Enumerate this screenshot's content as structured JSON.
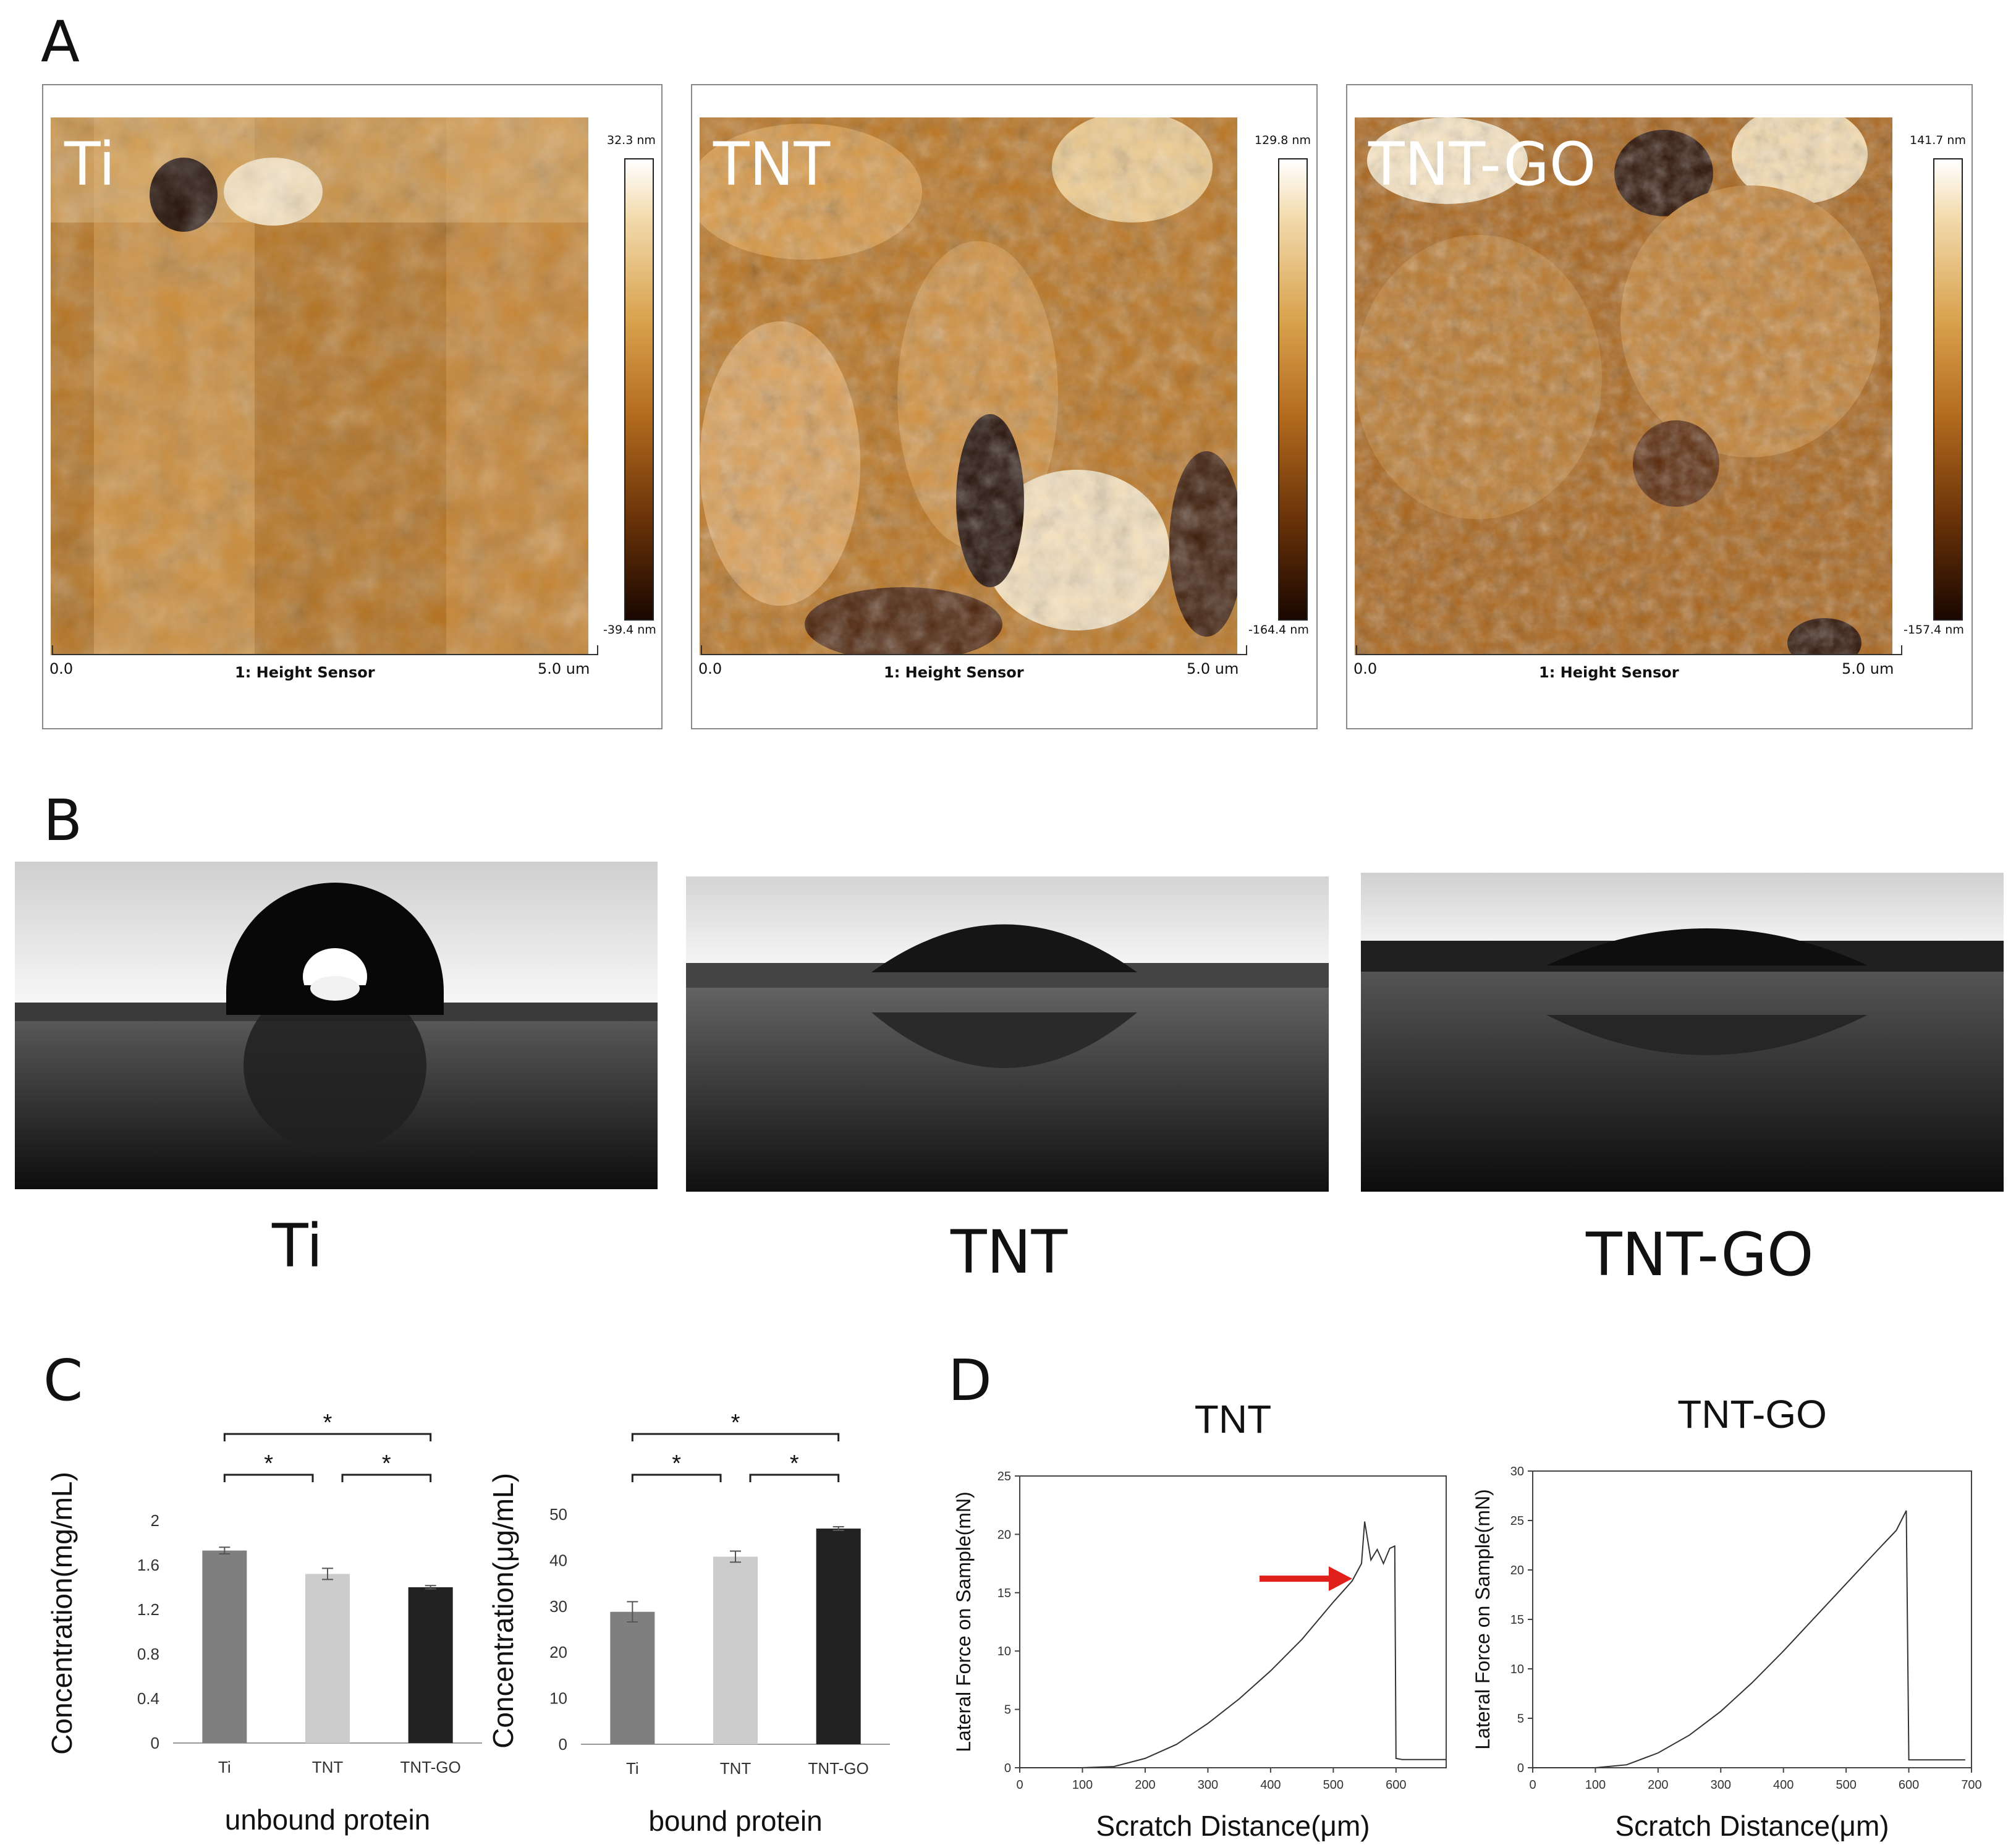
{
  "panels": {
    "A": "A",
    "B": "B",
    "C": "C",
    "D": "D"
  },
  "afm": [
    {
      "label": "Ti",
      "max": "32.3 nm",
      "min": "-39.4 nm",
      "scale_start": "0.0",
      "scale_end": "5.0 um",
      "sensor": "1: Height Sensor"
    },
    {
      "label": "TNT",
      "max": "129.8 nm",
      "min": "-164.4 nm",
      "scale_start": "0.0",
      "scale_end": "5.0 um",
      "sensor": "1: Height Sensor"
    },
    {
      "label": "TNT-GO",
      "max": "141.7 nm",
      "min": "-157.4 nm",
      "scale_start": "0.0",
      "scale_end": "5.0 um",
      "sensor": "1: Height Sensor"
    }
  ],
  "contact_angle_labels": [
    "Ti",
    "TNT",
    "TNT-GO"
  ],
  "colors": {
    "ti_bar": "#7f7f7f",
    "tnt_bar": "#cccccc",
    "tntgo_bar": "#222222",
    "arrow": "#e0201a",
    "afm_bright": "#fbe9c8",
    "afm_dark": "#1a0700"
  },
  "chart_data": [
    {
      "type": "bar",
      "xlabel": "unbound protein",
      "ylabel": "Concentration(mg/mL)",
      "categories": [
        "Ti",
        "TNT",
        "TNT-GO"
      ],
      "values": [
        1.73,
        1.52,
        1.4
      ],
      "errors": [
        0.03,
        0.05,
        0.015
      ],
      "ylim": [
        0,
        2
      ],
      "yticks": [
        "0",
        "0.4",
        "0.8",
        "1.2",
        "1.6",
        "2"
      ],
      "significance": [
        {
          "from": 0,
          "to": 2,
          "label": "*"
        },
        {
          "from": 0,
          "to": 1,
          "label": "*"
        },
        {
          "from": 1,
          "to": 2,
          "label": "*"
        }
      ]
    },
    {
      "type": "bar",
      "xlabel": "bound protein",
      "ylabel": "Concentration(μg/mL)",
      "categories": [
        "Ti",
        "TNT",
        "TNT-GO"
      ],
      "values": [
        28.8,
        40.8,
        46.9
      ],
      "errors": [
        2.2,
        1.2,
        0.4
      ],
      "ylim": [
        0,
        50
      ],
      "yticks": [
        "0",
        "10",
        "20",
        "30",
        "40",
        "50"
      ],
      "significance": [
        {
          "from": 0,
          "to": 2,
          "label": "*"
        },
        {
          "from": 0,
          "to": 1,
          "label": "*"
        },
        {
          "from": 1,
          "to": 2,
          "label": "*"
        }
      ]
    },
    {
      "type": "line",
      "title": "TNT",
      "xlabel": "Scratch Distance(μm)",
      "ylabel": "Lateral Force on Sample(mN)",
      "xlim": [
        0,
        680
      ],
      "ylim": [
        0,
        25
      ],
      "xticks": [
        "0",
        "100",
        "200",
        "300",
        "400",
        "500",
        "600"
      ],
      "yticks": [
        "0",
        "5",
        "10",
        "15",
        "20",
        "25"
      ],
      "x": [
        0,
        100,
        150,
        200,
        250,
        300,
        350,
        400,
        450,
        500,
        530,
        545,
        550,
        560,
        570,
        580,
        590,
        598,
        600,
        610,
        680
      ],
      "y": [
        0,
        0,
        0.1,
        0.8,
        2.0,
        3.8,
        5.9,
        8.3,
        11.0,
        14.2,
        16.0,
        17.5,
        21.1,
        17.8,
        18.7,
        17.5,
        18.8,
        19.0,
        0.8,
        0.7,
        0.7
      ],
      "arrow_at": {
        "x": 540,
        "y": 16.2
      }
    },
    {
      "type": "line",
      "title": "TNT-GO",
      "xlabel": "Scratch Distance(μm)",
      "ylabel": "Lateral Force on Sample(mN)",
      "xlim": [
        0,
        700
      ],
      "ylim": [
        0,
        30
      ],
      "xticks": [
        "0",
        "100",
        "200",
        "300",
        "400",
        "500",
        "600",
        "700"
      ],
      "yticks": [
        "0",
        "5",
        "10",
        "15",
        "20",
        "25",
        "30"
      ],
      "x": [
        0,
        100,
        150,
        200,
        250,
        300,
        350,
        400,
        450,
        500,
        550,
        580,
        596,
        600,
        610,
        690
      ],
      "y": [
        0,
        0,
        0.3,
        1.5,
        3.3,
        5.7,
        8.6,
        11.8,
        15.2,
        18.6,
        22.0,
        24.0,
        26.0,
        0.8,
        0.8,
        0.8
      ]
    }
  ]
}
